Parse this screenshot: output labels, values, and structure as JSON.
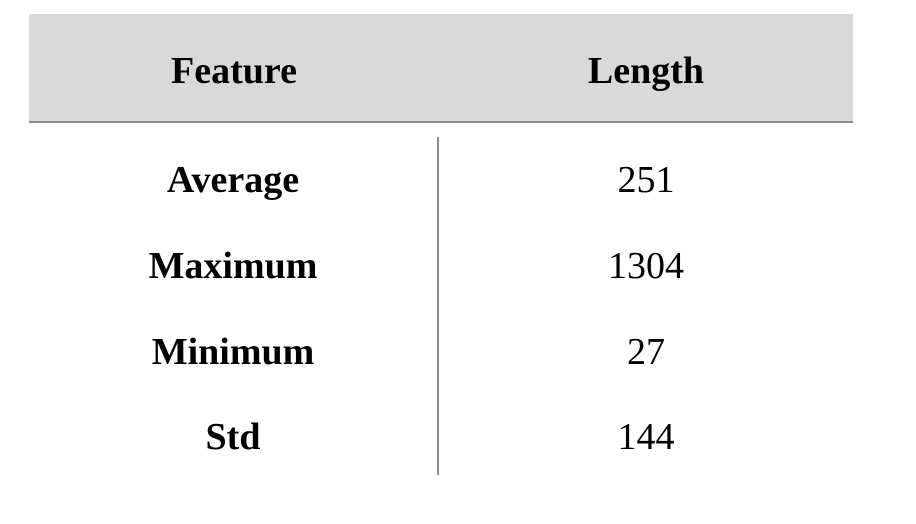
{
  "table": {
    "headers": {
      "feature": "Feature",
      "length": "Length"
    },
    "rows": [
      {
        "feature": "Average",
        "length": "251"
      },
      {
        "feature": "Maximum",
        "length": "1304"
      },
      {
        "feature": "Minimum",
        "length": "27"
      },
      {
        "feature": "Std",
        "length": "144"
      }
    ]
  },
  "colors": {
    "header_background": "#d9d9d9",
    "rule": "#8c8c8c",
    "text": "#000000"
  }
}
